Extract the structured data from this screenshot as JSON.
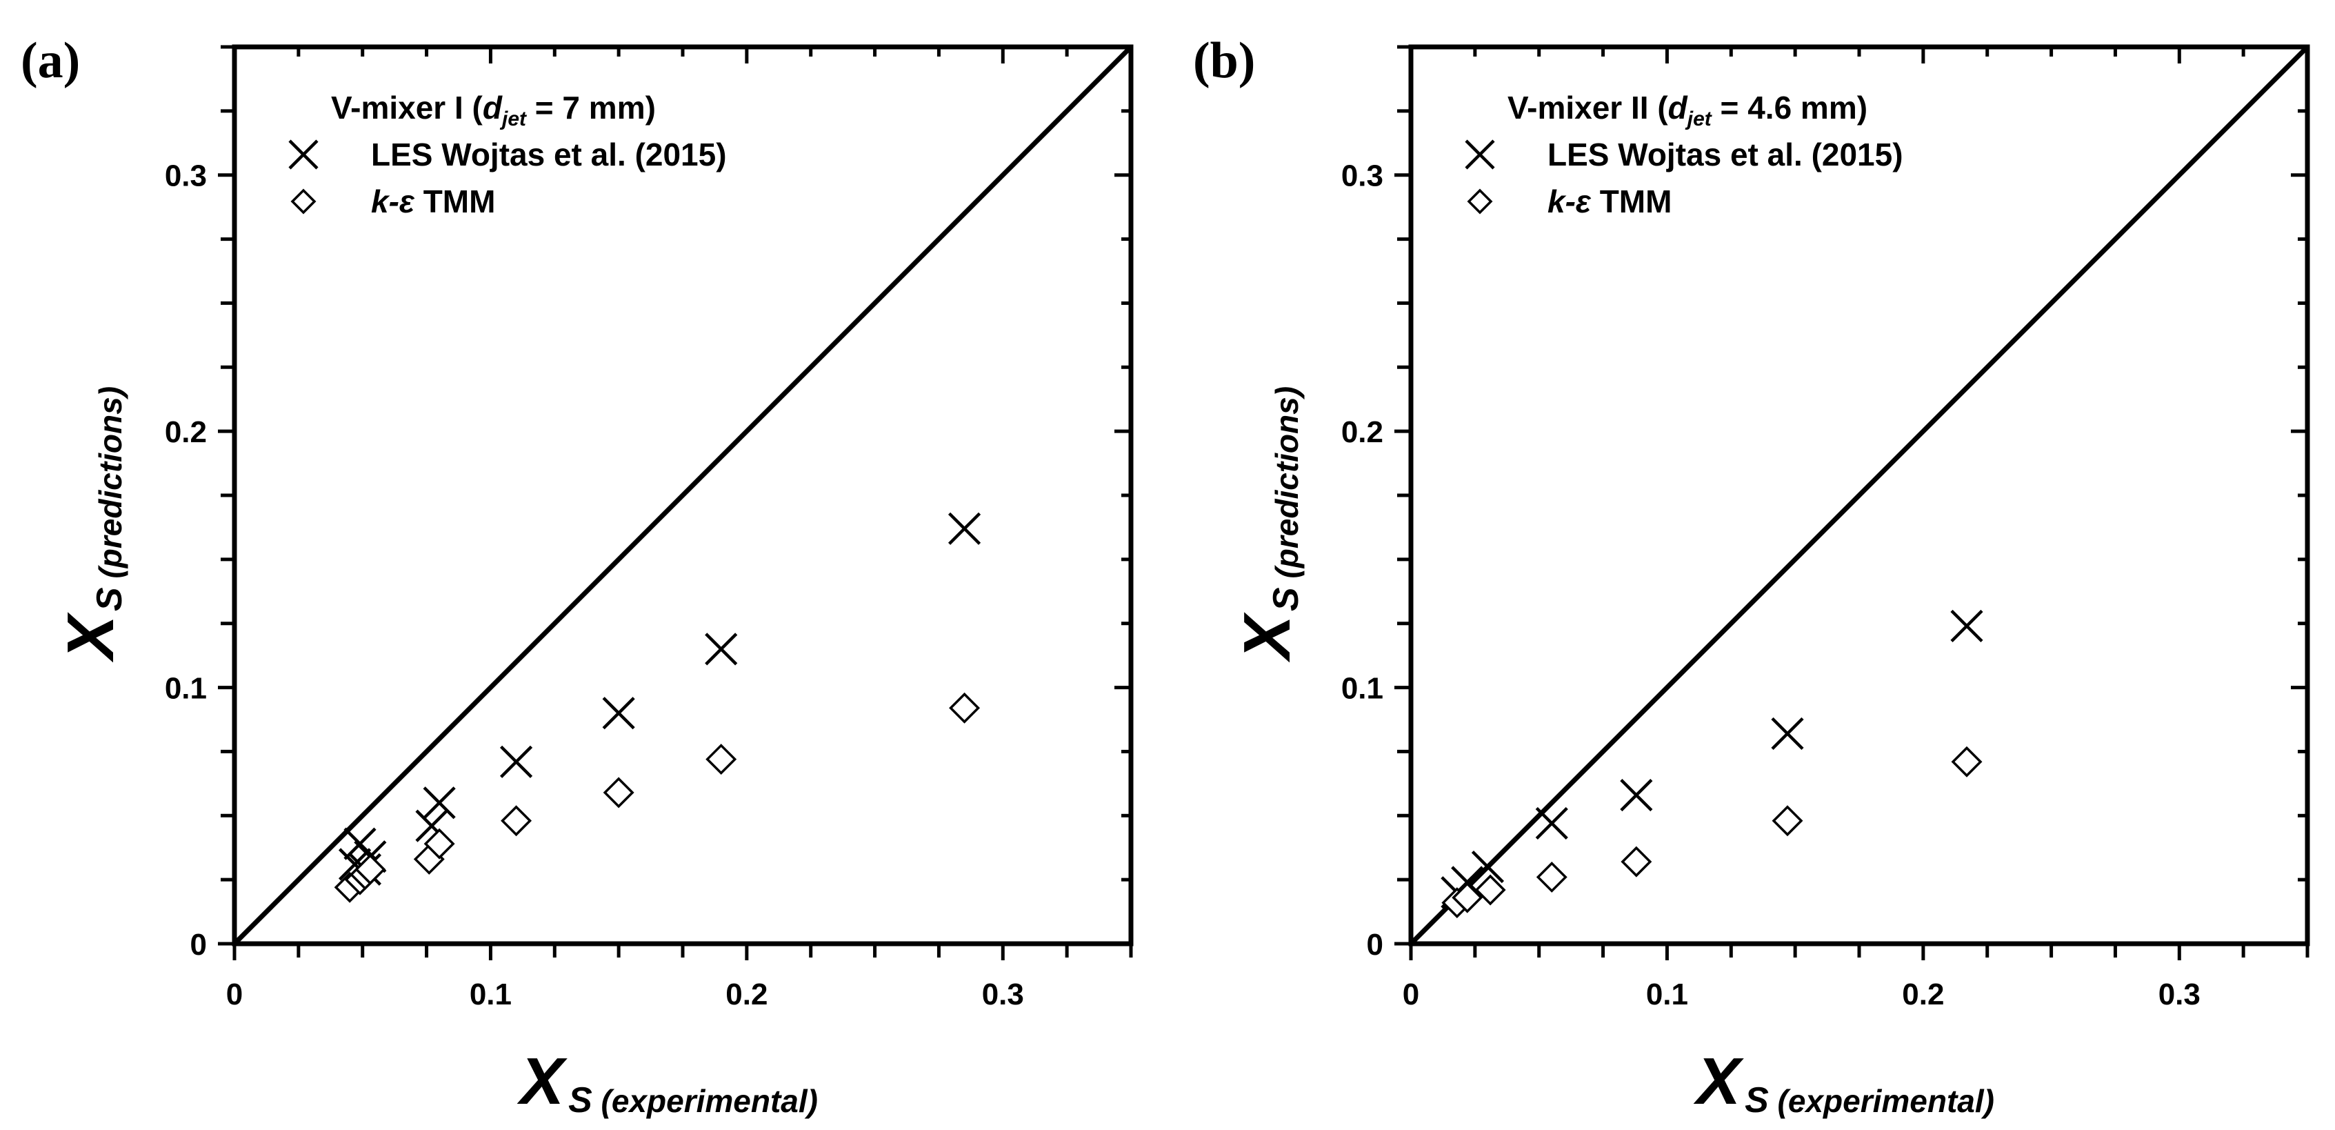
{
  "chart_data": [
    {
      "type": "scatter",
      "panel_label": "(a)",
      "legend_title": {
        "prefix": "V-mixer I (",
        "var": "d",
        "sub": "jet",
        "suffix": " = 7 mm)"
      },
      "xlim": [
        0,
        0.35
      ],
      "ylim": [
        0,
        0.35
      ],
      "xticks": [
        0,
        0.1,
        0.2,
        0.3
      ],
      "yticks": [
        0,
        0.1,
        0.2,
        0.3
      ],
      "tick_labels": [
        "0",
        "0.1",
        "0.2",
        "0.3"
      ],
      "xlabel": {
        "main": "X",
        "sub": "S (experimental)"
      },
      "ylabel": {
        "main": "X",
        "sub": "S (predictions)"
      },
      "reference_line": "y = x",
      "legend_position": "top-left",
      "series": [
        {
          "name": "LES Wojtas et al. (2015)",
          "marker": "x",
          "points": [
            [
              0.047,
              0.031
            ],
            [
              0.049,
              0.039
            ],
            [
              0.051,
              0.029
            ],
            [
              0.053,
              0.034
            ],
            [
              0.077,
              0.046
            ],
            [
              0.08,
              0.055
            ],
            [
              0.11,
              0.071
            ],
            [
              0.15,
              0.09
            ],
            [
              0.19,
              0.115
            ],
            [
              0.285,
              0.162
            ]
          ]
        },
        {
          "name": "k-ε TMM",
          "name_parts": {
            "italic": "k-ε",
            "plain": " TMM"
          },
          "marker": "diamond",
          "points": [
            [
              0.045,
              0.022
            ],
            [
              0.049,
              0.025
            ],
            [
              0.051,
              0.027
            ],
            [
              0.053,
              0.029
            ],
            [
              0.076,
              0.033
            ],
            [
              0.08,
              0.039
            ],
            [
              0.11,
              0.048
            ],
            [
              0.15,
              0.059
            ],
            [
              0.19,
              0.072
            ],
            [
              0.285,
              0.092
            ]
          ]
        }
      ]
    },
    {
      "type": "scatter",
      "panel_label": "(b)",
      "legend_title": {
        "prefix": "V-mixer II (",
        "var": "d",
        "sub": "jet",
        "suffix": " = 4.6 mm)"
      },
      "xlim": [
        0,
        0.35
      ],
      "ylim": [
        0,
        0.35
      ],
      "xticks": [
        0,
        0.1,
        0.2,
        0.3
      ],
      "yticks": [
        0,
        0.1,
        0.2,
        0.3
      ],
      "tick_labels": [
        "0",
        "0.1",
        "0.2",
        "0.3"
      ],
      "xlabel": {
        "main": "X",
        "sub": "S (experimental)"
      },
      "ylabel": {
        "main": "X",
        "sub": "S (predictions)"
      },
      "reference_line": "y = x",
      "legend_position": "top-left",
      "series": [
        {
          "name": "LES Wojtas et al. (2015)",
          "marker": "x",
          "points": [
            [
              0.018,
              0.02
            ],
            [
              0.022,
              0.024
            ],
            [
              0.03,
              0.03
            ],
            [
              0.055,
              0.047
            ],
            [
              0.088,
              0.058
            ],
            [
              0.147,
              0.082
            ],
            [
              0.217,
              0.124
            ]
          ]
        },
        {
          "name": "k-ε TMM",
          "name_parts": {
            "italic": "k-ε",
            "plain": " TMM"
          },
          "marker": "diamond",
          "points": [
            [
              0.018,
              0.016
            ],
            [
              0.022,
              0.018
            ],
            [
              0.031,
              0.021
            ],
            [
              0.055,
              0.026
            ],
            [
              0.088,
              0.032
            ],
            [
              0.147,
              0.048
            ],
            [
              0.217,
              0.071
            ]
          ]
        }
      ]
    }
  ]
}
